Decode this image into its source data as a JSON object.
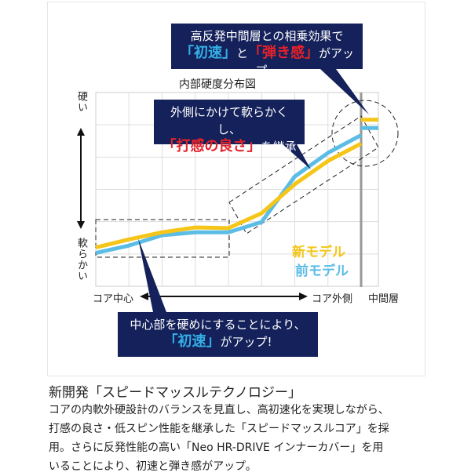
{
  "chart_data": {
    "type": "line",
    "title": "内部硬度分布図",
    "ylabel_top": "硬い",
    "ylabel_bottom": "軟らかい",
    "xlabel_left": "コア中心",
    "xlabel_right": "コア外側",
    "xlabel_layer": "中間層",
    "grid": true,
    "x": [
      0,
      1,
      2,
      3,
      4,
      5,
      6,
      7,
      8
    ],
    "ylim": [
      0,
      6
    ],
    "series": [
      {
        "name": "新モデル",
        "color": "#f5c518",
        "values": [
          1.2,
          1.45,
          1.67,
          1.82,
          1.8,
          2.26,
          3.16,
          3.88,
          4.42
        ],
        "middle_layer": 5.16
      },
      {
        "name": "前モデル",
        "color": "#5bbde6",
        "values": [
          1.03,
          1.26,
          1.58,
          1.67,
          1.67,
          1.99,
          3.4,
          4.13,
          4.68
        ],
        "middle_layer": 4.9
      }
    ]
  },
  "callouts": {
    "top": {
      "line1": "高反発中間層との相乗効果で",
      "q1": "「初速」",
      "mid": "と",
      "q2": "「弾き感」",
      "tail": "がアップ。"
    },
    "middle": {
      "line1": "外側にかけて軟らかくし、",
      "q1": "「打感の良さ」",
      "tail": "を継承"
    },
    "bottom": {
      "line1": "中心部を硬めにすることにより、",
      "q1": "「初速」",
      "tail": "がアップ!"
    }
  },
  "description": {
    "title": "新開発「スピードマッスルテクノロジー」",
    "lines": [
      "コアの内軟外硬設計のバランスを見直し、高初速化を実現しながら、",
      "打感の良さ・低スピン性能を継承した「スピードマッスルコア」を採",
      "用。さらに反発性能の高い「Neo HR-DRIVE インナーカバー」を用",
      "いることにより、初速と弾き感がアップ。"
    ]
  }
}
